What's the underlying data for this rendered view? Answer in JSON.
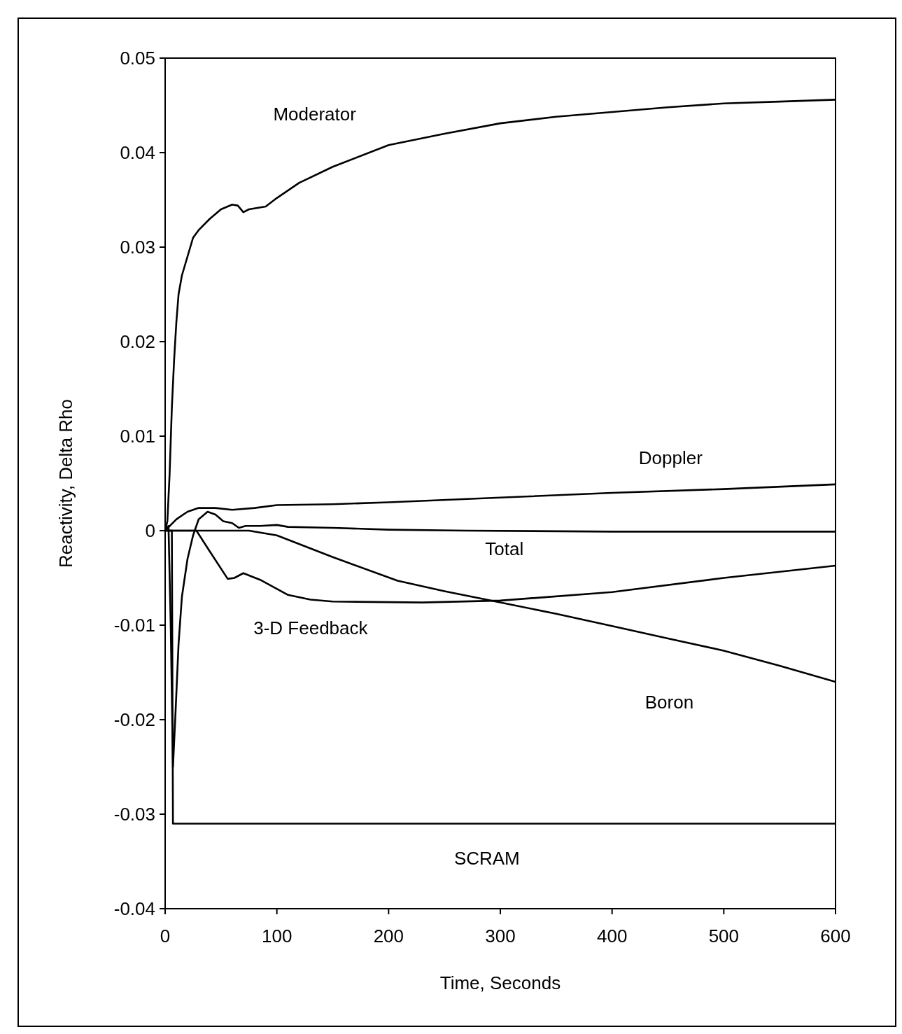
{
  "chart_data": {
    "type": "line",
    "xlabel": "Time, Seconds",
    "ylabel": "Reactivity, Delta Rho",
    "xlim": [
      0,
      600
    ],
    "xticks": [
      0,
      100,
      200,
      300,
      400,
      500,
      600
    ],
    "ylim": [
      -0.04,
      0.05
    ],
    "yticks": [
      -0.04,
      -0.03,
      -0.02,
      -0.01,
      0,
      0.01,
      0.02,
      0.03,
      0.04,
      0.05
    ],
    "grid": false,
    "marker": "none",
    "line_style": "solid",
    "series": [
      {
        "name": "Moderator",
        "color": "#000000",
        "x": [
          0,
          2,
          4,
          6,
          8,
          10,
          12,
          15,
          20,
          25,
          30,
          40,
          50,
          60,
          65,
          70,
          75,
          90,
          100,
          120,
          150,
          200,
          250,
          300,
          350,
          400,
          450,
          500,
          550,
          600
        ],
        "values": [
          0,
          0.001,
          0.006,
          0.013,
          0.018,
          0.022,
          0.025,
          0.027,
          0.029,
          0.031,
          0.0318,
          0.033,
          0.034,
          0.0345,
          0.0344,
          0.0337,
          0.034,
          0.0343,
          0.0352,
          0.0368,
          0.0385,
          0.0408,
          0.042,
          0.0431,
          0.0438,
          0.0443,
          0.0448,
          0.0452,
          0.0454,
          0.0456
        ]
      },
      {
        "name": "Doppler",
        "color": "#000000",
        "x": [
          0,
          10,
          20,
          30,
          45,
          60,
          80,
          100,
          150,
          200,
          300,
          400,
          500,
          600
        ],
        "values": [
          0,
          0.0012,
          0.002,
          0.0024,
          0.0024,
          0.0022,
          0.0024,
          0.0027,
          0.0028,
          0.003,
          0.0035,
          0.004,
          0.0044,
          0.0049
        ]
      },
      {
        "name": "Total",
        "color": "#000000",
        "x": [
          0,
          3,
          5,
          7,
          9,
          12,
          15,
          20,
          25,
          30,
          38,
          45,
          52,
          60,
          66,
          72,
          85,
          100,
          110,
          150,
          200,
          270,
          400,
          600
        ],
        "values": [
          0,
          0.0005,
          -0.01,
          -0.025,
          -0.02,
          -0.012,
          -0.007,
          -0.003,
          -0.0005,
          0.0012,
          0.002,
          0.0017,
          0.001,
          0.0008,
          0.0003,
          0.0005,
          0.0005,
          0.0006,
          0.0004,
          0.0003,
          0.0001,
          0,
          -0.0001,
          -0.0001
        ]
      },
      {
        "name": "3-D Feedback",
        "color": "#000000",
        "x": [
          0,
          28,
          40,
          56,
          62,
          70,
          85,
          110,
          130,
          150,
          230,
          300,
          400,
          500,
          600
        ],
        "values": [
          0,
          0,
          -0.0022,
          -0.0051,
          -0.005,
          -0.0045,
          -0.0052,
          -0.0068,
          -0.0073,
          -0.0075,
          -0.0076,
          -0.0074,
          -0.0065,
          -0.005,
          -0.0037
        ]
      },
      {
        "name": "Boron",
        "color": "#000000",
        "x": [
          0,
          75,
          100,
          150,
          208,
          250,
          296,
          350,
          400,
          450,
          500,
          550,
          600
        ],
        "values": [
          0,
          0,
          -0.0005,
          -0.0028,
          -0.0053,
          -0.0064,
          -0.0075,
          -0.0088,
          -0.0101,
          -0.0114,
          -0.0127,
          -0.0143,
          -0.016
        ]
      },
      {
        "name": "SCRAM",
        "color": "#000000",
        "x": [
          0,
          6,
          7,
          600
        ],
        "values": [
          0,
          0,
          -0.031,
          -0.031
        ]
      }
    ]
  }
}
